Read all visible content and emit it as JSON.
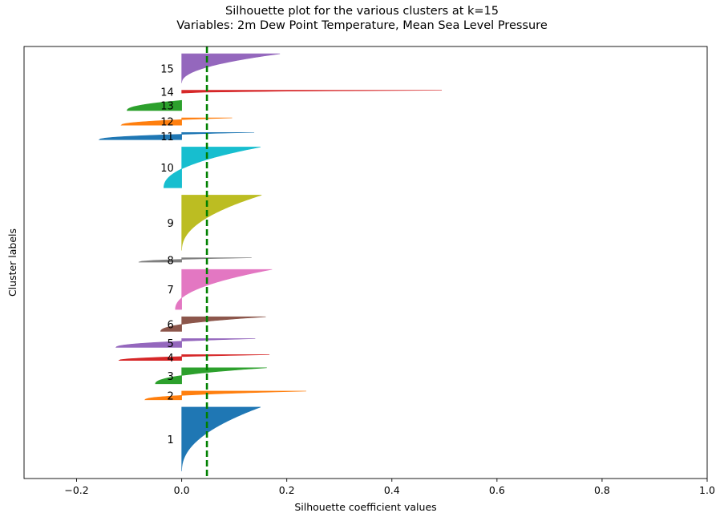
{
  "chart_data": {
    "type": "bar",
    "orientation": "horizontal",
    "title": "Silhouette plot for the various clusters at k=15",
    "subtitle": "Variables: 2m Dew Point Temperature, Mean Sea Level Pressure",
    "xlabel": "Silhouette coefficient values",
    "ylabel": "Cluster labels",
    "xlim": [
      -0.3,
      1.0
    ],
    "xticks": [
      "−0.2",
      "0.0",
      "0.2",
      "0.4",
      "0.6",
      "0.8",
      "1.0"
    ],
    "xtick_values": [
      -0.2,
      0.0,
      0.2,
      0.4,
      0.6,
      0.8,
      1.0
    ],
    "yticks": [],
    "grid": false,
    "mean_silhouette": 0.048,
    "mean_line_color": "#008000",
    "clusters": [
      {
        "label": "1",
        "color": "#1f77b4",
        "size": 88,
        "max": 0.15,
        "min": 0.0
      },
      {
        "label": "2",
        "color": "#ff7f0e",
        "size": 12,
        "max": 0.237,
        "min": -0.07
      },
      {
        "label": "3",
        "color": "#2ca02c",
        "size": 22,
        "max": 0.162,
        "min": -0.05
      },
      {
        "label": "4",
        "color": "#d62728",
        "size": 8,
        "max": 0.167,
        "min": -0.12
      },
      {
        "label": "5",
        "color": "#9467bd",
        "size": 12,
        "max": 0.14,
        "min": -0.125
      },
      {
        "label": "6",
        "color": "#8c564b",
        "size": 20,
        "max": 0.16,
        "min": -0.04
      },
      {
        "label": "7",
        "color": "#e377c2",
        "size": 55,
        "max": 0.172,
        "min": -0.012
      },
      {
        "label": "8",
        "color": "#7f7f7f",
        "size": 6,
        "max": 0.133,
        "min": -0.082
      },
      {
        "label": "9",
        "color": "#bcbd22",
        "size": 76,
        "max": 0.152,
        "min": 0.0
      },
      {
        "label": "10",
        "color": "#17becf",
        "size": 56,
        "max": 0.15,
        "min": -0.034
      },
      {
        "label": "11",
        "color": "#1f77b4",
        "size": 10,
        "max": 0.138,
        "min": -0.157
      },
      {
        "label": "12",
        "color": "#ff7f0e",
        "size": 10,
        "max": 0.096,
        "min": -0.115
      },
      {
        "label": "13",
        "color": "#2ca02c",
        "size": 14,
        "max": 0.0,
        "min": -0.104
      },
      {
        "label": "14",
        "color": "#d62728",
        "size": 4,
        "max": 0.495,
        "min": 0.0
      },
      {
        "label": "15",
        "color": "#9467bd",
        "size": 40,
        "max": 0.187,
        "min": 0.0
      }
    ]
  }
}
